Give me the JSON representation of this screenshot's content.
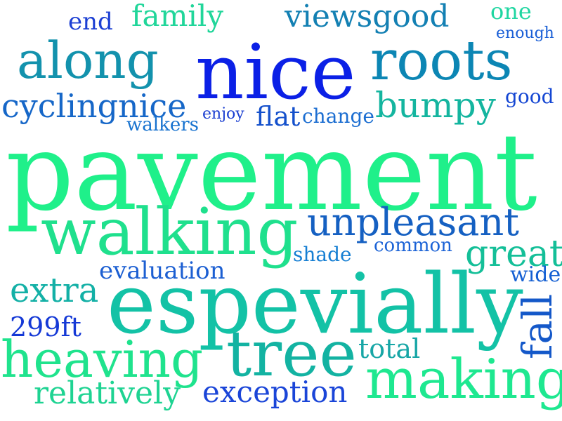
{
  "word_cloud": {
    "words": [
      {
        "text": "end",
        "color": "#1c3fd3"
      },
      {
        "text": "family",
        "color": "#21d69a"
      },
      {
        "text": "viewsgood",
        "color": "#1380b3"
      },
      {
        "text": "one",
        "color": "#1fd6a1"
      },
      {
        "text": "enough",
        "color": "#1a5fd6"
      },
      {
        "text": "along",
        "color": "#1392ad"
      },
      {
        "text": "nice",
        "color": "#0b20e6"
      },
      {
        "text": "roots",
        "color": "#0c86b4"
      },
      {
        "text": "cyclingnice",
        "color": "#1667c8"
      },
      {
        "text": "enjoy",
        "color": "#1a3ed1"
      },
      {
        "text": "flat",
        "color": "#1450cc"
      },
      {
        "text": "change",
        "color": "#1c6ed1"
      },
      {
        "text": "bumpy",
        "color": "#14b59f"
      },
      {
        "text": "good",
        "color": "#1446d3"
      },
      {
        "text": "walkers",
        "color": "#1672cf"
      },
      {
        "text": "pavement",
        "color": "#1ff08a"
      },
      {
        "text": "walking",
        "color": "#1fe08d"
      },
      {
        "text": "unpleasant",
        "color": "#1560c2"
      },
      {
        "text": "shade",
        "color": "#167fd3"
      },
      {
        "text": "common",
        "color": "#1a62d6"
      },
      {
        "text": "great",
        "color": "#14bf98"
      },
      {
        "text": "evaluation",
        "color": "#1c5fd2"
      },
      {
        "text": "wide",
        "color": "#1560d3"
      },
      {
        "text": "extra",
        "color": "#13b0a6"
      },
      {
        "text": "espevially",
        "color": "#13c2a6"
      },
      {
        "text": "fall",
        "color": "#1458c9"
      },
      {
        "text": "299ft",
        "color": "#1539d6"
      },
      {
        "text": "heaving",
        "color": "#1fe38d"
      },
      {
        "text": "tree",
        "color": "#13b3a2"
      },
      {
        "text": "total",
        "color": "#17a6a6"
      },
      {
        "text": "making",
        "color": "#1ee890"
      },
      {
        "text": "relatively",
        "color": "#1ed392"
      },
      {
        "text": "exception",
        "color": "#1a45d8"
      }
    ]
  }
}
